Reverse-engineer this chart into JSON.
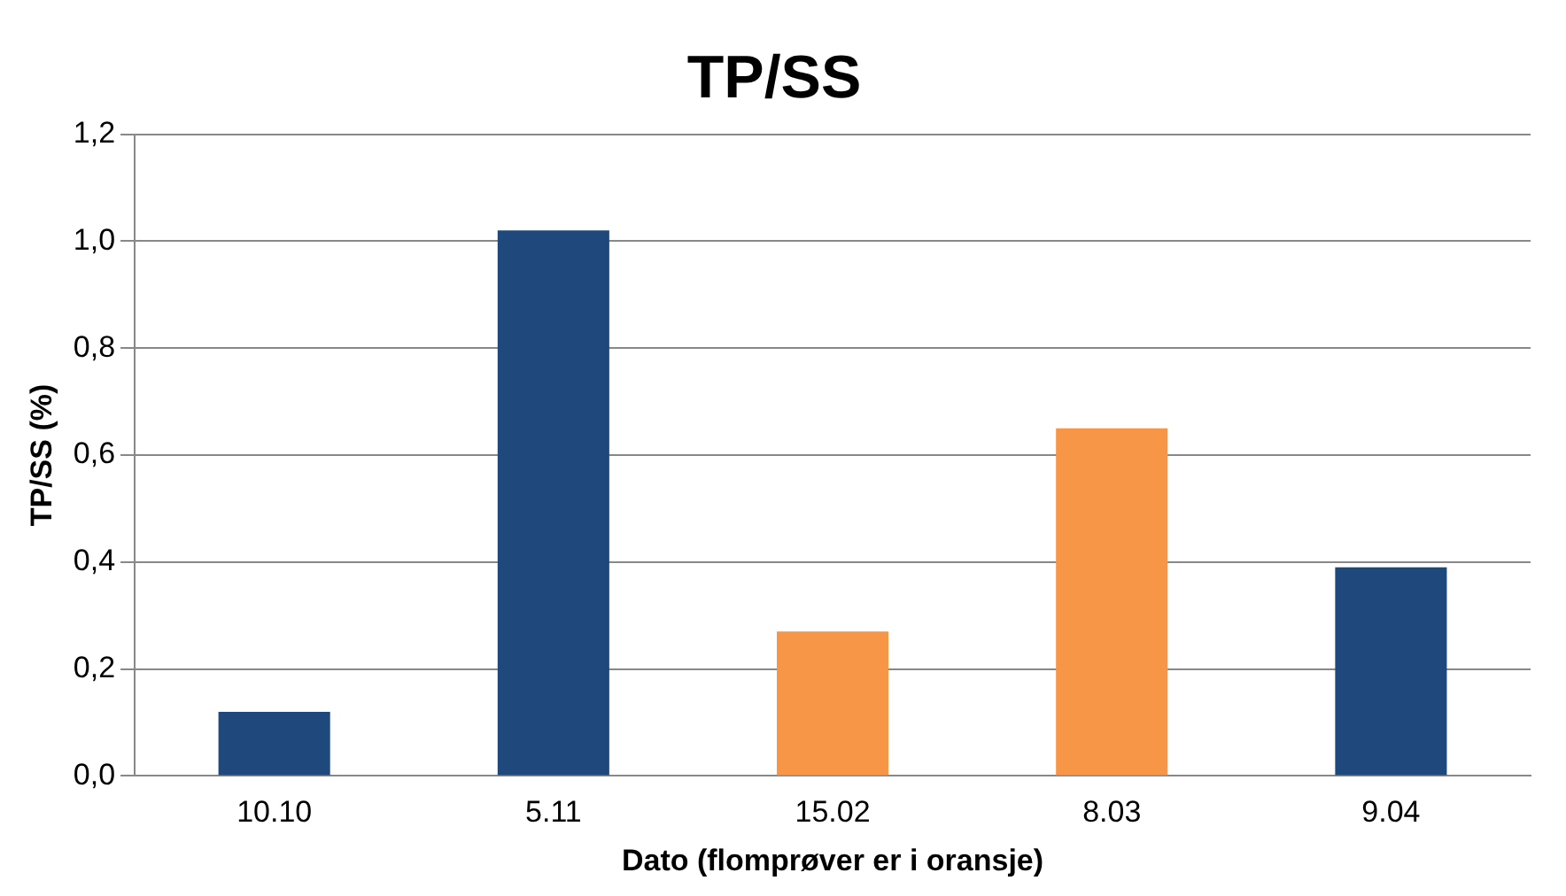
{
  "chart_data": {
    "type": "bar",
    "title": "TP/SS",
    "xlabel": "Dato (flomprøver er i oransje)",
    "ylabel": "TP/SS (%)",
    "categories": [
      "10.10",
      "5.11",
      "15.02",
      "8.03",
      "9.04"
    ],
    "values": [
      0.12,
      1.02,
      0.27,
      0.65,
      0.39
    ],
    "colors": [
      "#1f497d",
      "#1f497d",
      "#f79646",
      "#f79646",
      "#1f497d"
    ],
    "ylim": [
      0,
      1.2
    ],
    "yticks": [
      {
        "value": 0,
        "label": "0,0"
      },
      {
        "value": 0.2,
        "label": "0,2"
      },
      {
        "value": 0.4,
        "label": "0,4"
      },
      {
        "value": 0.6,
        "label": "0,6"
      },
      {
        "value": 0.8,
        "label": "0,8"
      },
      {
        "value": 1.0,
        "label": "1,0"
      },
      {
        "value": 1.2,
        "label": "1,2"
      }
    ],
    "grid": "y",
    "legend": false
  }
}
